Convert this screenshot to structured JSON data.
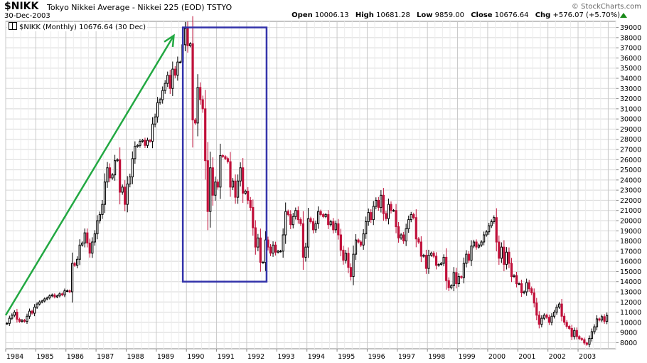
{
  "header": {
    "symbol": "$NIKK",
    "name": "Tokyo Nikkei Average - Nikkei 225 (EOD) TSTYO",
    "date": "30-Dec-2003",
    "brand": "© StockCharts.com",
    "open_label": "Open",
    "open_value": "10006.13",
    "high_label": "High",
    "high_value": "10681.28",
    "low_label": "Low",
    "low_value": "9859.00",
    "close_label": "Close",
    "close_value": "10676.64",
    "chg_label": "Chg",
    "chg_value": "+576.07 (+5.70%)",
    "chg_arrow_icon": "up-triangle-icon"
  },
  "legend": {
    "icon": "candlestick-icon",
    "text": "$NIKK (Monthly) 10676.64 (30 Dec)"
  },
  "colors": {
    "up": "#000000",
    "down": "#c0103a",
    "grid": "#d8d8d8",
    "annotation_arrow": "#22a842",
    "annotation_box": "#3333aa"
  },
  "chart_data": {
    "type": "candlestick",
    "interval": "monthly",
    "x_tick_labels": [
      "1984",
      "1985",
      "1986",
      "1987",
      "1988",
      "1989",
      "1990",
      "1991",
      "1992",
      "1993",
      "1994",
      "1995",
      "1996",
      "1997",
      "1998",
      "1999",
      "2000",
      "2001",
      "2002",
      "2003"
    ],
    "y_tick_labels": [
      8000,
      9000,
      10000,
      11000,
      12000,
      13000,
      14000,
      15000,
      16000,
      17000,
      18000,
      19000,
      20000,
      21000,
      22000,
      23000,
      24000,
      25000,
      26000,
      27000,
      28000,
      29000,
      30000,
      31000,
      32000,
      33000,
      34000,
      35000,
      36000,
      37000,
      38000,
      39000
    ],
    "xlim": [
      1984.0,
      2004.25
    ],
    "ylim": [
      7400,
      39600
    ],
    "y_axis_side": "right",
    "grid": true,
    "monthly_closes": [
      [
        1984,
        "9900 10400 10700 11000 10300 10100 10200 10100 10600 11100 10900 11500"
      ],
      [
        1985,
        "11800 12000 12100 12300 12400 12600 12700 12500 12600 12800 12700 13100"
      ],
      [
        1986,
        "13100 13000 15800 15600 16200 17600 17800 18800 17800 16800 17900 18700"
      ],
      [
        1987,
        "20000 20600 21600 23800 25200 24200 24500 25900 26000 22800 23300 21600"
      ],
      [
        1988,
        "23600 24300 26100 27300 27400 27800 27900 27400 27900 27800 29500 30200"
      ],
      [
        1989,
        "31600 31900 32800 33500 34300 33000 34900 34300 35600 35600 37300 38900"
      ],
      [
        1990,
        "37200 37400 29900 29600 33100 31900 31000 25900 20900 25200 22500 23800"
      ],
      [
        1991,
        "23300 26400 26300 26100 25800 23300 23900 22300 23900 25200 22700 22900"
      ],
      [
        1992,
        "22000 21300 19300 17400 18300 15900 15900 18100 17400 16800 17600 16900"
      ],
      [
        1993,
        "17000 17000 18600 20900 20600 19600 20400 21000 20100 19700 16400 17400"
      ],
      [
        1994,
        "20200 19900 19100 19700 20900 20600 20400 20600 19600 19900 19100 19700"
      ],
      [
        1995,
        "18600 17100 16100 16800 15400 14500 16700 18100 17900 17600 18700 19900"
      ],
      [
        1996,
        "20800 20100 21400 22000 21300 22500 20700 20200 21600 21000 21000 19400"
      ],
      [
        1997,
        "18300 18600 18000 19200 20100 20600 20300 18200 17900 16500 16600 15300"
      ],
      [
        1998,
        "16600 16800 16500 15600 15700 15800 16400 14100 13400 13600 14900 13800"
      ],
      [
        1999,
        "14500 14400 15800 16700 16100 17500 17900 17400 17600 17900 18600 18900"
      ],
      [
        2000,
        "19500 19900 20300 17900 16300 17400 15700 16900 15800 14500 14600 13800"
      ],
      [
        2001,
        "13800 12900 13000 13900 13300 12900 11900 10700 9800 10400 10700 10500"
      ],
      [
        2002,
        "9990 10600 11000 11500 11800 10600 10000 9600 9400 8600 9200 8600"
      ],
      [
        2003,
        "8400 8300 7970 7830 8420 9080 9560 10340 10220 10560 10100 10676.64"
      ]
    ]
  }
}
